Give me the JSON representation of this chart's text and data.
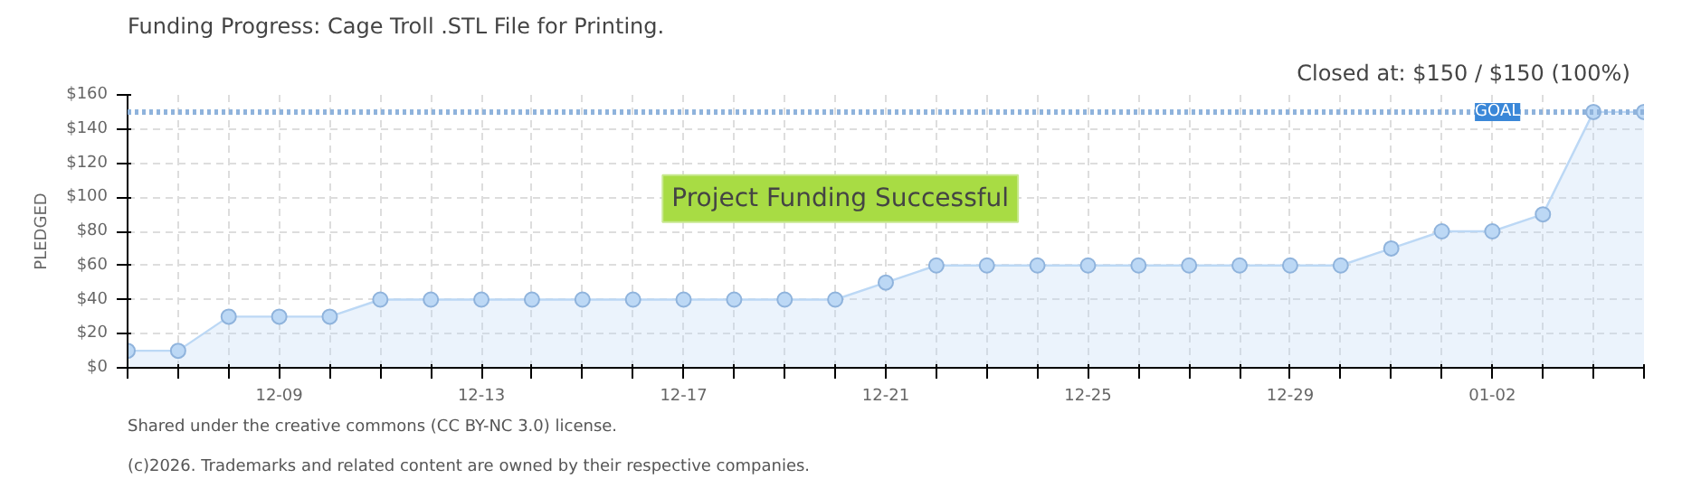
{
  "chart_data": {
    "type": "area",
    "title": "Funding Progress: Cage Troll .STL File for Printing.",
    "subtitle": "Closed at:  $150 /  $150 (100%)",
    "ylabel": "PLEDGED",
    "categories": [
      null,
      null,
      null,
      "12-09",
      null,
      null,
      null,
      "12-13",
      null,
      null,
      null,
      "12-17",
      null,
      null,
      null,
      "12-21",
      null,
      null,
      null,
      "12-25",
      null,
      null,
      null,
      "12-29",
      null,
      null,
      null,
      "01-02",
      null,
      null,
      null
    ],
    "series": [
      {
        "color": "#bcd8f5",
        "values": [
          10,
          10,
          30,
          30,
          30,
          40,
          40,
          40,
          40,
          40,
          40,
          40,
          40,
          40,
          40,
          50,
          60,
          60,
          60,
          60,
          60,
          60,
          60,
          60,
          60,
          70,
          80,
          80,
          90,
          150,
          150
        ]
      }
    ],
    "ylim": [
      0,
      160
    ],
    "yticks": [
      {
        "value": 0,
        "label": "$0"
      },
      {
        "value": 20,
        "label": "$20"
      },
      {
        "value": 40,
        "label": "$40"
      },
      {
        "value": 60,
        "label": "$60"
      },
      {
        "value": 80,
        "label": "$80"
      },
      {
        "value": 100,
        "label": "$100"
      },
      {
        "value": 120,
        "label": "$120"
      },
      {
        "value": 140,
        "label": "$140"
      },
      {
        "value": 160,
        "label": "$160"
      }
    ],
    "ref_lines": [
      {
        "axis": "y",
        "value": 150,
        "label": "GOAL",
        "color": "#8fb3dc",
        "line_style": "dotted"
      }
    ],
    "annotations": [
      "Project Funding Successful",
      "(c)2026. Trademarks and related content are owned by their respective companies.",
      "Shared under the creative commons (CC BY-NC 3.0) license."
    ],
    "grid": true,
    "marker": "circle",
    "line_style": "solid"
  }
}
